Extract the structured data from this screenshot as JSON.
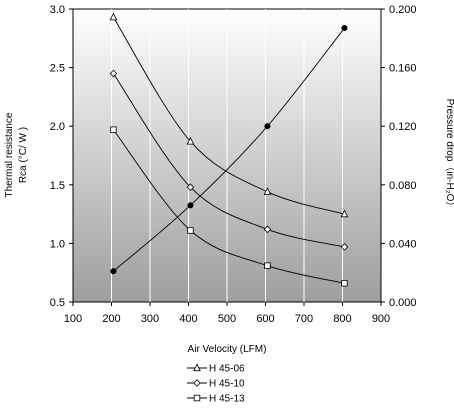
{
  "chart_data": {
    "type": "line",
    "x": [
      200,
      400,
      600,
      800
    ],
    "xlabel": "Air Velocity (LFM)",
    "xlim": [
      100,
      900
    ],
    "xticks": [
      100,
      200,
      300,
      400,
      500,
      600,
      700,
      800,
      900
    ],
    "y_left": {
      "label_line1": "Thermal resistance",
      "label_line2": "Rca (°C/ W )",
      "lim": [
        0.5,
        3.0
      ],
      "ticks": [
        0.5,
        1.0,
        1.5,
        2.0,
        2.5,
        3.0
      ],
      "tick_labels": [
        "0.5",
        "1.0",
        "1.5",
        "2.0",
        "2.5",
        "3.0"
      ]
    },
    "y_right": {
      "label": "Pressure drop（in-H₂O）",
      "lim": [
        0.0,
        0.2
      ],
      "ticks": [
        0.0,
        0.04,
        0.08,
        0.12,
        0.16,
        0.2
      ],
      "tick_labels": [
        "0.000",
        "0.040",
        "0.080",
        "0.120",
        "0.160",
        "0.200"
      ]
    },
    "series": [
      {
        "name": "H 45-06",
        "axis": "left",
        "marker": "triangle",
        "x": [
          205,
          405,
          605,
          805
        ],
        "values": [
          2.93,
          1.87,
          1.44,
          1.25
        ]
      },
      {
        "name": "H 45-10",
        "axis": "left",
        "marker": "diamond",
        "x": [
          205,
          405,
          605,
          805
        ],
        "values": [
          2.45,
          1.48,
          1.12,
          0.97
        ]
      },
      {
        "name": "H 45-13",
        "axis": "left",
        "marker": "square",
        "x": [
          205,
          405,
          605,
          805
        ],
        "values": [
          1.97,
          1.11,
          0.81,
          0.66
        ]
      },
      {
        "name": "",
        "axis": "right",
        "marker": "filled-circle",
        "x": [
          205,
          405,
          605,
          805
        ],
        "values": [
          0.021,
          0.066,
          0.12,
          0.187
        ]
      }
    ],
    "grid": {
      "x": true,
      "y": false
    },
    "plot_background": "gradient-grey",
    "legend_position": "bottom-center"
  },
  "colors": {
    "plot_top": "#ffffff",
    "plot_bottom": "#9e9e9e",
    "line": "#000000",
    "grid": "#ffffff"
  }
}
